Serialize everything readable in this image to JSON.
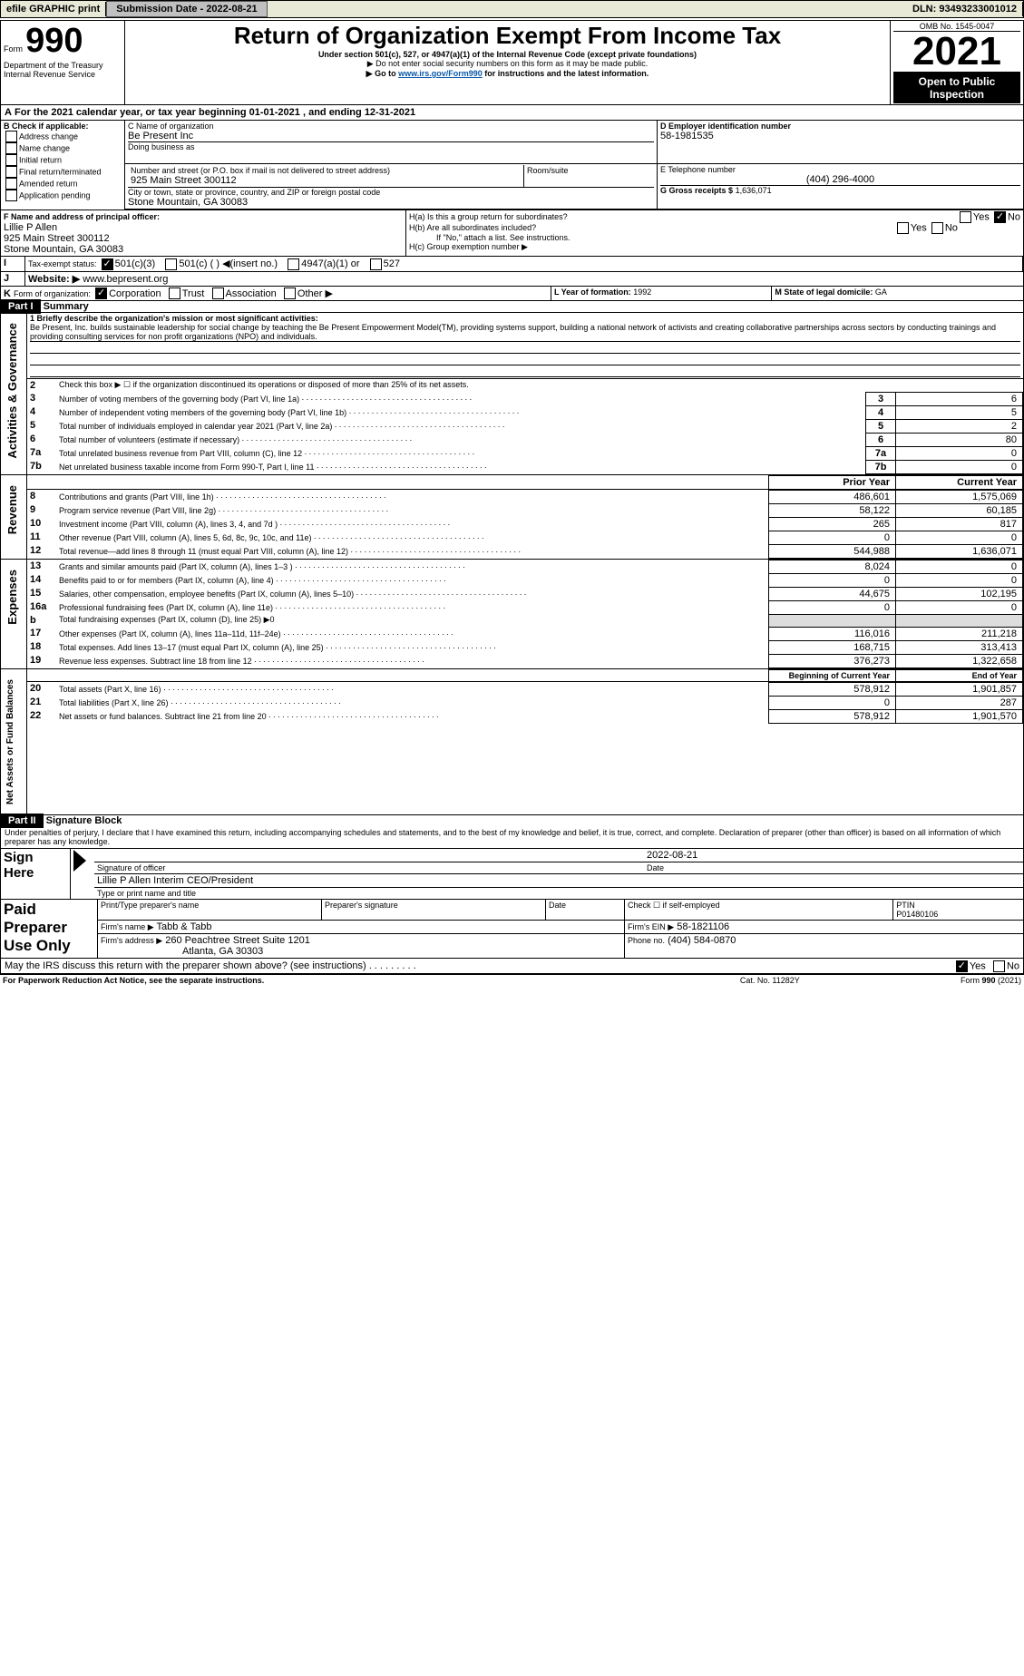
{
  "header": {
    "efile": "efile GRAPHIC print",
    "submission_label": "Submission Date - 2022-08-21",
    "dln": "DLN: 93493233001012"
  },
  "form": {
    "form_label": "Form",
    "form_no": "990",
    "title": "Return of Organization Exempt From Income Tax",
    "subtitle": "Under section 501(c), 527, or 4947(a)(1) of the Internal Revenue Code (except private foundations)",
    "note1": "▶ Do not enter social security numbers on this form as it may be made public.",
    "note2_pre": "▶ Go to ",
    "note2_link": "www.irs.gov/Form990",
    "note2_post": " for instructions and the latest information.",
    "dept": "Department of the Treasury\nInternal Revenue Service",
    "omb": "OMB No. 1545-0047",
    "year": "2021",
    "open": "Open to Public Inspection"
  },
  "A": {
    "text": "For the 2021 calendar year, or tax year beginning ",
    "begin": "01-01-2021",
    "mid": "   , and ending ",
    "end": "12-31-2021"
  },
  "B": {
    "label": "B Check if applicable:",
    "items": [
      "Address change",
      "Name change",
      "Initial return",
      "Final return/terminated",
      "Amended return",
      "Application pending"
    ]
  },
  "C": {
    "name_label": "C Name of organization",
    "name": "Be Present Inc",
    "dba_label": "Doing business as",
    "street_label": "Number and street (or P.O. box if mail is not delivered to street address)",
    "room_label": "Room/suite",
    "street": "925 Main Street 300112",
    "city_label": "City or town, state or province, country, and ZIP or foreign postal code",
    "city": "Stone Mountain, GA  30083"
  },
  "D": {
    "label": "D Employer identification number",
    "value": "58-1981535"
  },
  "E": {
    "label": "E Telephone number",
    "value": "(404) 296-4000"
  },
  "G": {
    "label": "G Gross receipts $",
    "value": "1,636,071"
  },
  "F": {
    "label": "F  Name and address of principal officer:",
    "name": "Lillie P Allen",
    "street": "925 Main Street 300112",
    "city": "Stone Mountain, GA  30083"
  },
  "H": {
    "a": "H(a)  Is this a group return for subordinates?",
    "b": "H(b)  Are all subordinates included?",
    "note": "If \"No,\" attach a list. See instructions.",
    "c": "H(c)  Group exemption number ▶",
    "yes": "Yes",
    "no": "No"
  },
  "I": {
    "label": "Tax-exempt status:",
    "opts": [
      "501(c)(3)",
      "501(c) (  ) ◀(insert no.)",
      "4947(a)(1) or",
      "527"
    ]
  },
  "J": {
    "label": "Website: ▶",
    "value": "www.bepresent.org"
  },
  "K": {
    "label": "Form of organization:",
    "opts": [
      "Corporation",
      "Trust",
      "Association",
      "Other ▶"
    ]
  },
  "L": {
    "label": "L Year of formation:",
    "value": "1992"
  },
  "M": {
    "label": "M State of legal domicile:",
    "value": "GA"
  },
  "part1": {
    "label": "Part I",
    "title": "Summary",
    "side": "Activities & Governance"
  },
  "mission": {
    "label": "1 Briefly describe the organization's mission or most significant activities:",
    "text": "Be Present, Inc. builds sustainable leadership for social change by teaching the Be Present Empowerment Model(TM), providing systems support, building a national network of activists and creating collaborative partnerships across sectors by conducting trainings and providing consulting services for non profit organizations (NPO) and individuals."
  },
  "gov": [
    {
      "n": "2",
      "t": "Check this box ▶ ☐  if the organization discontinued its operations or disposed of more than 25% of its net assets."
    },
    {
      "n": "3",
      "t": "Number of voting members of the governing body (Part VI, line 1a)",
      "v": "6"
    },
    {
      "n": "4",
      "t": "Number of independent voting members of the governing body (Part VI, line 1b)",
      "v": "5"
    },
    {
      "n": "5",
      "t": "Total number of individuals employed in calendar year 2021 (Part V, line 2a)",
      "v": "2"
    },
    {
      "n": "6",
      "t": "Total number of volunteers (estimate if necessary)",
      "v": "80"
    },
    {
      "n": "7a",
      "t": "Total unrelated business revenue from Part VIII, column (C), line 12",
      "v": "0"
    },
    {
      "n": "7b",
      "t": "Net unrelated business taxable income from Form 990-T, Part I, line 11",
      "v": "0"
    }
  ],
  "col_hdr": {
    "prior": "Prior Year",
    "current": "Current Year"
  },
  "revenue_side": "Revenue",
  "revenue": [
    {
      "n": "8",
      "t": "Contributions and grants (Part VIII, line 1h)",
      "p": "486,601",
      "c": "1,575,069"
    },
    {
      "n": "9",
      "t": "Program service revenue (Part VIII, line 2g)",
      "p": "58,122",
      "c": "60,185"
    },
    {
      "n": "10",
      "t": "Investment income (Part VIII, column (A), lines 3, 4, and 7d )",
      "p": "265",
      "c": "817"
    },
    {
      "n": "11",
      "t": "Other revenue (Part VIII, column (A), lines 5, 6d, 8c, 9c, 10c, and 11e)",
      "p": "0",
      "c": "0"
    },
    {
      "n": "12",
      "t": "Total revenue—add lines 8 through 11 (must equal Part VIII, column (A), line 12)",
      "p": "544,988",
      "c": "1,636,071"
    }
  ],
  "expenses_side": "Expenses",
  "expenses": [
    {
      "n": "13",
      "t": "Grants and similar amounts paid (Part IX, column (A), lines 1–3 )",
      "p": "8,024",
      "c": "0"
    },
    {
      "n": "14",
      "t": "Benefits paid to or for members (Part IX, column (A), line 4)",
      "p": "0",
      "c": "0"
    },
    {
      "n": "15",
      "t": "Salaries, other compensation, employee benefits (Part IX, column (A), lines 5–10)",
      "p": "44,675",
      "c": "102,195"
    },
    {
      "n": "16a",
      "t": "Professional fundraising fees (Part IX, column (A), line 11e)",
      "p": "0",
      "c": "0"
    },
    {
      "n": "b",
      "t": "Total fundraising expenses (Part IX, column (D), line 25) ▶0",
      "p": "",
      "c": ""
    },
    {
      "n": "17",
      "t": "Other expenses (Part IX, column (A), lines 11a–11d, 11f–24e)",
      "p": "116,016",
      "c": "211,218"
    },
    {
      "n": "18",
      "t": "Total expenses. Add lines 13–17 (must equal Part IX, column (A), line 25)",
      "p": "168,715",
      "c": "313,413"
    },
    {
      "n": "19",
      "t": "Revenue less expenses. Subtract line 18 from line 12",
      "p": "376,273",
      "c": "1,322,658"
    }
  ],
  "net_side": "Net Assets or Fund Balances",
  "net_hdr": {
    "begin": "Beginning of Current Year",
    "end": "End of Year"
  },
  "net": [
    {
      "n": "20",
      "t": "Total assets (Part X, line 16)",
      "p": "578,912",
      "c": "1,901,857"
    },
    {
      "n": "21",
      "t": "Total liabilities (Part X, line 26)",
      "p": "0",
      "c": "287"
    },
    {
      "n": "22",
      "t": "Net assets or fund balances. Subtract line 21 from line 20",
      "p": "578,912",
      "c": "1,901,570"
    }
  ],
  "part2": {
    "label": "Part II",
    "title": "Signature Block"
  },
  "decl": "Under penalties of perjury, I declare that I have examined this return, including accompanying schedules and statements, and to the best of my knowledge and belief, it is true, correct, and complete. Declaration of preparer (other than officer) is based on all information of which preparer has any knowledge.",
  "sign": {
    "here": "Sign Here",
    "sig_label": "Signature of officer",
    "date_label": "Date",
    "date": "2022-08-21",
    "name": "Lillie P Allen  Interim CEO/President",
    "name_label": "Type or print name and title"
  },
  "paid": {
    "title": "Paid Preparer Use Only",
    "cols": [
      "Print/Type preparer's name",
      "Preparer's signature",
      "Date"
    ],
    "check_label": "Check ☐ if self-employed",
    "ptin_label": "PTIN",
    "ptin": "P01480106",
    "firm_name_label": "Firm's name  ▶",
    "firm_name": "Tabb & Tabb",
    "firm_ein_label": "Firm's EIN ▶",
    "firm_ein": "58-1821106",
    "firm_addr_label": "Firm's address ▶",
    "firm_addr": "260 Peachtree Street Suite 1201",
    "firm_city": "Atlanta, GA  30303",
    "phone_label": "Phone no.",
    "phone": "(404) 584-0870"
  },
  "footer": {
    "discuss": "May the IRS discuss this return with the preparer shown above? (see instructions)",
    "paperwork": "For Paperwork Reduction Act Notice, see the separate instructions.",
    "cat": "Cat. No. 11282Y",
    "form": "Form 990 (2021)",
    "yes": "Yes",
    "no": "No"
  }
}
